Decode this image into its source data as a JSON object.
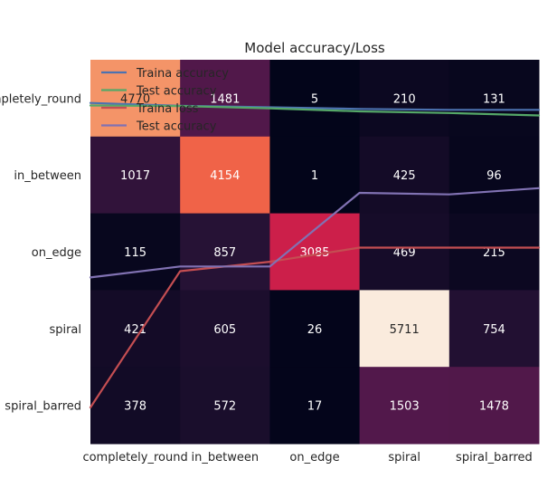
{
  "chart_data": {
    "type": "heatmap",
    "title": "Model accuracy/Loss",
    "row_labels": [
      "completely_round",
      "in_between",
      "on_edge",
      "spiral",
      "spiral_barred"
    ],
    "col_labels": [
      "completely_round",
      "in_between",
      "on_edge",
      "spiral",
      "spiral_barred"
    ],
    "matrix": [
      [
        4770,
        1481,
        5,
        210,
        131
      ],
      [
        1017,
        4154,
        1,
        425,
        96
      ],
      [
        115,
        857,
        3085,
        469,
        215
      ],
      [
        421,
        605,
        26,
        5711,
        754
      ],
      [
        378,
        572,
        17,
        1503,
        1478
      ]
    ],
    "colorscale": "rocket",
    "overlay_lines": {
      "x": [
        0,
        1,
        2,
        3,
        4,
        5
      ],
      "ylim": [
        0,
        1
      ],
      "series": [
        {
          "name": "Traina accuracy",
          "color": "#4c72b0",
          "values": [
            0.972,
            0.963,
            0.958,
            0.953,
            0.95,
            0.95
          ]
        },
        {
          "name": "Test accuracy",
          "color": "#55a868",
          "values": [
            0.964,
            0.962,
            0.955,
            0.945,
            0.94,
            0.932
          ]
        },
        {
          "name": "Traina loss",
          "color": "#c44e52",
          "values": [
            0.0,
            0.435,
            0.465,
            0.51,
            0.51,
            0.51
          ]
        },
        {
          "name": "Test accuracy",
          "color": "#8172b3",
          "values": [
            0.415,
            0.45,
            0.45,
            0.685,
            0.68,
            0.7
          ]
        }
      ],
      "legend_position": "top-left"
    }
  }
}
